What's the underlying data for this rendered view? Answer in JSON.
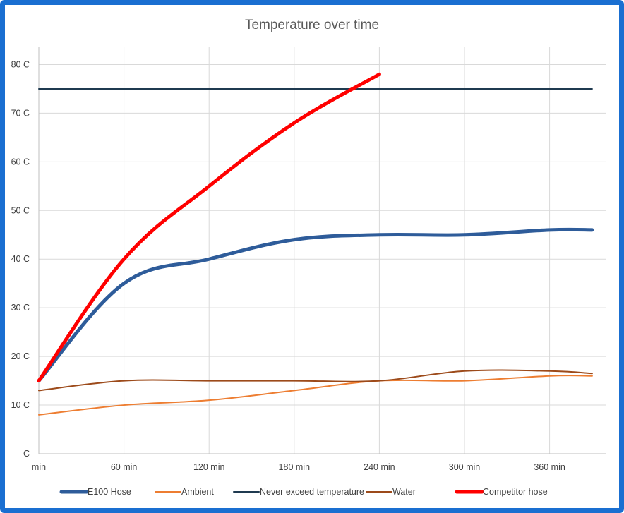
{
  "chart_data": {
    "type": "line",
    "title": "Temperature over time",
    "x": [
      0,
      60,
      120,
      180,
      240,
      300,
      360,
      390
    ],
    "x_ticks": [
      0,
      60,
      120,
      180,
      240,
      300,
      360
    ],
    "x_tick_labels": [
      "min",
      "60 min",
      "120 min",
      "180 min",
      "240 min",
      "300 min",
      "360 min"
    ],
    "xlim": [
      0,
      400
    ],
    "y_ticks": [
      0,
      10,
      20,
      30,
      40,
      50,
      60,
      70,
      80
    ],
    "y_tick_labels": [
      "C",
      "10 C",
      "20 C",
      "30 C",
      "40 C",
      "50 C",
      "60 C",
      "70 C",
      "80 C"
    ],
    "ylim": [
      0,
      85
    ],
    "grid": true,
    "legend_position": "bottom",
    "series": [
      {
        "name": "E100 Hose",
        "color": "#2e5c9a",
        "width": 5,
        "x": [
          0,
          60,
          120,
          180,
          240,
          300,
          360,
          390
        ],
        "y": [
          15,
          35,
          40,
          44,
          45,
          45,
          46,
          46
        ]
      },
      {
        "name": "Ambient",
        "color": "#ed7d31",
        "width": 2,
        "x": [
          0,
          60,
          120,
          180,
          240,
          300,
          360,
          390
        ],
        "y": [
          8,
          10,
          11,
          13,
          15,
          15,
          16,
          16
        ]
      },
      {
        "name": "Never exceed temperature",
        "color": "#1f3a50",
        "width": 2,
        "x": [
          0,
          60,
          120,
          180,
          240,
          300,
          360,
          390
        ],
        "y": [
          75,
          75,
          75,
          75,
          75,
          75,
          75,
          75
        ]
      },
      {
        "name": "Water",
        "color": "#9c4a1a",
        "width": 2,
        "x": [
          0,
          60,
          120,
          180,
          240,
          300,
          360,
          390
        ],
        "y": [
          13,
          15,
          15,
          15,
          15,
          17,
          17,
          16.5
        ]
      },
      {
        "name": "Competitor hose",
        "color": "#ff0000",
        "width": 5,
        "x": [
          0,
          60,
          120,
          180,
          240
        ],
        "y": [
          15,
          40,
          55,
          68,
          78
        ]
      }
    ]
  }
}
